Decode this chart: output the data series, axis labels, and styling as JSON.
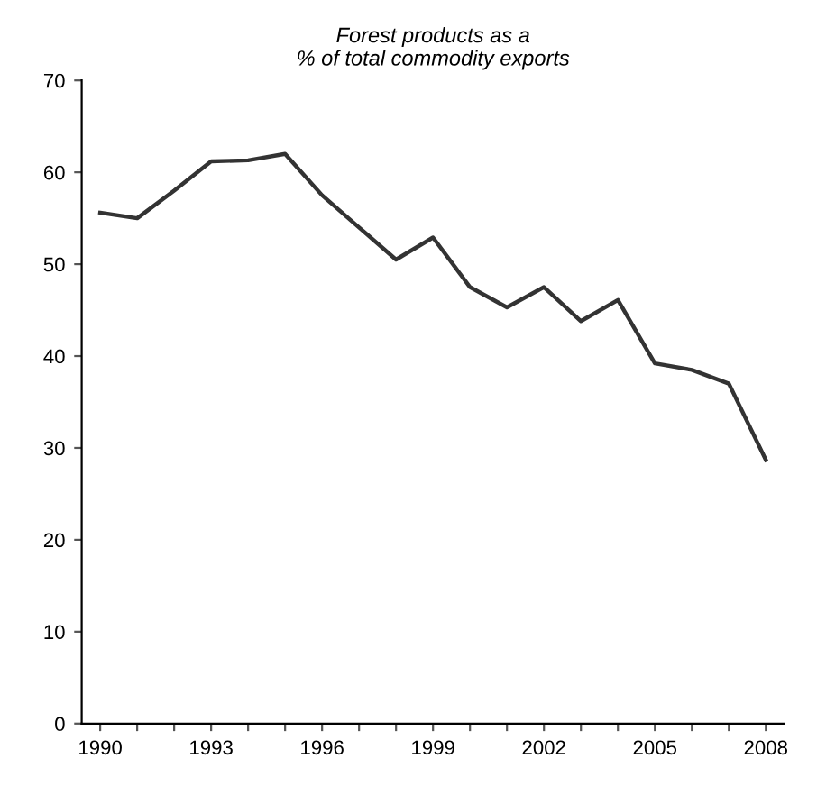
{
  "chart_data": {
    "type": "line",
    "title": "Forest products as a\n% of total commodity exports",
    "x": [
      1990,
      1991,
      1992,
      1993,
      1994,
      1995,
      1996,
      1997,
      1998,
      1999,
      2000,
      2001,
      2002,
      2003,
      2004,
      2005,
      2006,
      2007,
      2008
    ],
    "series": [
      {
        "color": "#333333",
        "values": [
          55.6,
          55,
          58,
          61.2,
          61.3,
          62,
          57.5,
          54,
          50.5,
          52.9,
          47.5,
          45.3,
          47.5,
          43.8,
          46.1,
          39.2,
          38.5,
          37,
          28.7
        ]
      }
    ],
    "xlim": [
      1989.5,
      2008.5
    ],
    "xticks": [
      1990,
      {
        "value": 1991,
        "label": null
      },
      {
        "value": 1992,
        "label": null
      },
      1993,
      {
        "value": 1994,
        "label": null
      },
      {
        "value": 1995,
        "label": null
      },
      1996,
      {
        "value": 1997,
        "label": null
      },
      {
        "value": 1998,
        "label": null
      },
      1999,
      {
        "value": 2000,
        "label": null
      },
      {
        "value": 2001,
        "label": null
      },
      2002,
      {
        "value": 2003,
        "label": null
      },
      {
        "value": 2004,
        "label": null
      },
      2005,
      {
        "value": 2006,
        "label": null
      },
      {
        "value": 2007,
        "label": null
      },
      2008
    ],
    "ylim": [
      0,
      70
    ],
    "yticks": [
      0,
      10,
      20,
      30,
      40,
      50,
      60,
      70
    ],
    "grid": false,
    "legend": false,
    "marker": "none",
    "line_style": "solid"
  }
}
